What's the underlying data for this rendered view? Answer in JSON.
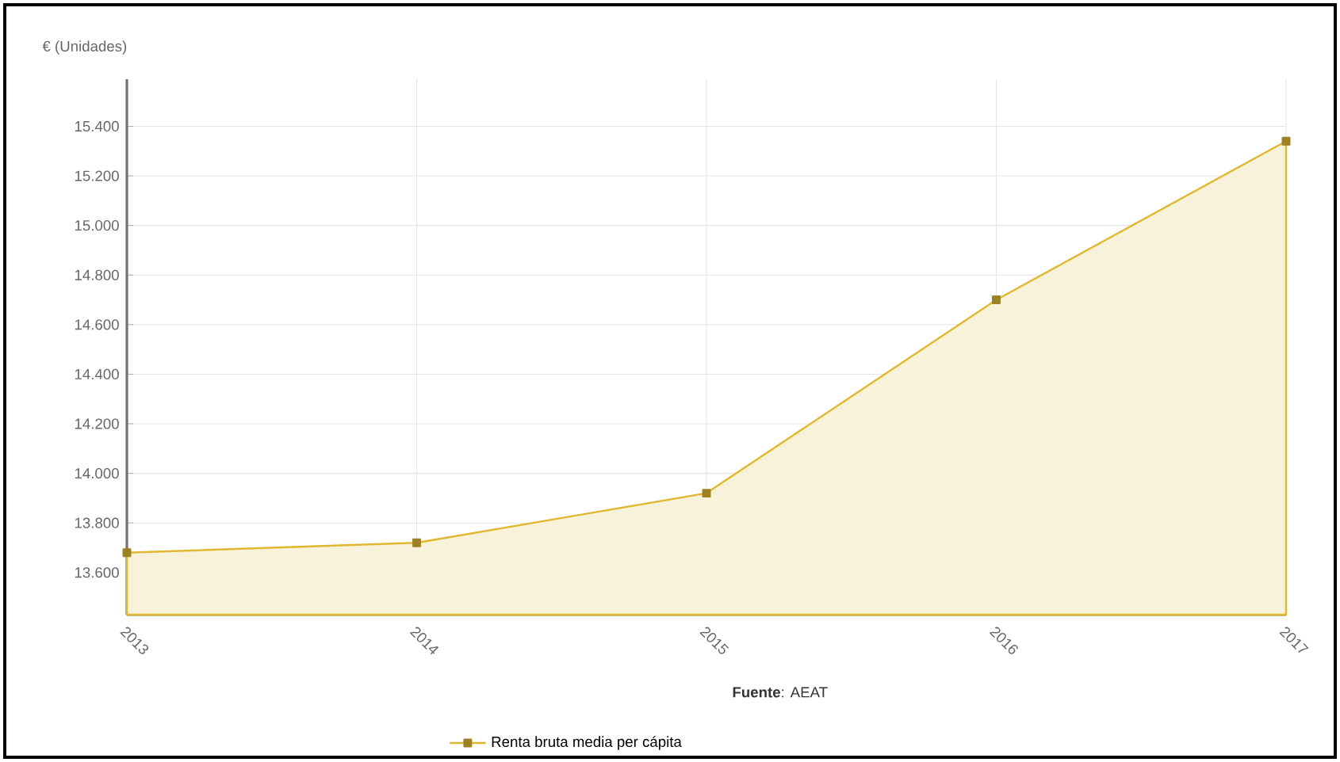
{
  "chart_data": {
    "type": "area",
    "ylabel": "€ (Unidades)",
    "categories": [
      "2013",
      "2014",
      "2015",
      "2016",
      "2017"
    ],
    "series": [
      {
        "name": "Renta bruta media per cápita",
        "color": "#e0b830",
        "values": [
          13680,
          13720,
          13920,
          14700,
          15340
        ]
      }
    ],
    "ylim": [
      13430,
      15590
    ],
    "yticks": [
      {
        "value": 13600,
        "label": "13.600"
      },
      {
        "value": 13800,
        "label": "13.800"
      },
      {
        "value": 14000,
        "label": "14.000"
      },
      {
        "value": 14200,
        "label": "14.200"
      },
      {
        "value": 14400,
        "label": "14.400"
      },
      {
        "value": 14600,
        "label": "14.600"
      },
      {
        "value": 14800,
        "label": "14.800"
      },
      {
        "value": 15000,
        "label": "15.000"
      },
      {
        "value": 15200,
        "label": "15.200"
      },
      {
        "value": 15400,
        "label": "15.400"
      }
    ],
    "grid": true,
    "legend": "bottom",
    "marker": "square",
    "annotations": [
      "**Fuente**: AEAT"
    ]
  }
}
